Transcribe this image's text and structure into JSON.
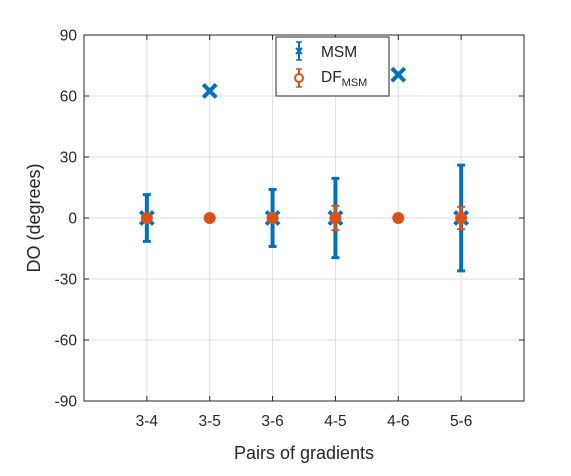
{
  "chart_data": {
    "type": "scatter",
    "xlabel": "Pairs of gradients",
    "ylabel": "DO (degrees)",
    "categories": [
      "3-4",
      "3-5",
      "3-6",
      "4-5",
      "4-6",
      "5-6"
    ],
    "ylim": [
      -90,
      90
    ],
    "yticks": [
      -90,
      -60,
      -30,
      0,
      30,
      60,
      90
    ],
    "grid": true,
    "legend_position": "top",
    "series": [
      {
        "name": "MSM",
        "legend_main": "MSM",
        "legend_sub": "",
        "color": "#0072BD",
        "marker": "x",
        "values": [
          0,
          62.5,
          0,
          0,
          70.5,
          0
        ],
        "error": [
          11.5,
          0,
          14,
          19.5,
          0,
          26
        ]
      },
      {
        "name": "DFMSM",
        "legend_main": "DF",
        "legend_sub": "MSM",
        "color": "#D95319",
        "marker": "o",
        "values": [
          0,
          0,
          0,
          0,
          0,
          0
        ],
        "error": [
          0,
          0,
          0,
          6,
          0,
          5.5
        ]
      }
    ]
  }
}
